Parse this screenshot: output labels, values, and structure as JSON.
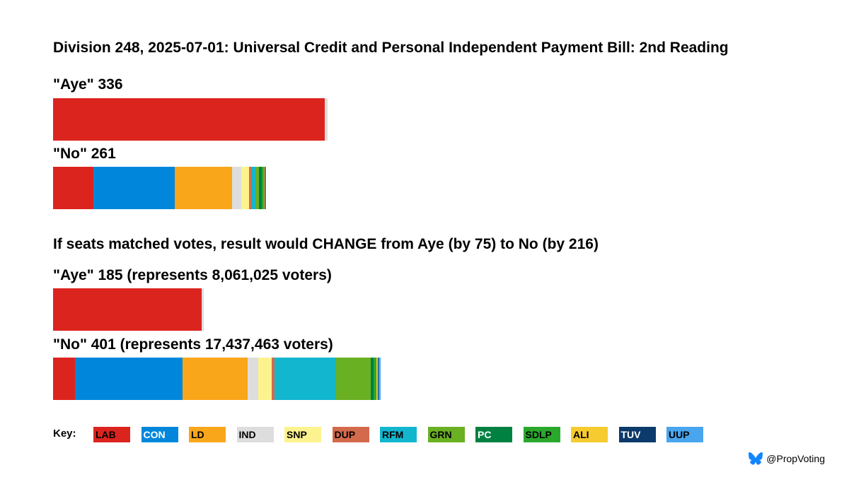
{
  "title": "Division 248, 2025-07-01: Universal Credit and Personal Independent Payment Bill: 2nd Reading",
  "subtitle": "If seats matched votes, result would CHANGE from Aye (by 75) to No (by 216)",
  "key_label": "Key:",
  "credit": "@PropVoting",
  "credit_icon": "butterfly-icon",
  "parties": [
    {
      "code": "LAB",
      "color": "#dc241f",
      "text": "#000000"
    },
    {
      "code": "CON",
      "color": "#0087dc",
      "text": "#ffffff"
    },
    {
      "code": "LD",
      "color": "#faa61a",
      "text": "#000000"
    },
    {
      "code": "IND",
      "color": "#dddddd",
      "text": "#000000"
    },
    {
      "code": "SNP",
      "color": "#fdf38e",
      "text": "#000000"
    },
    {
      "code": "DUP",
      "color": "#d46a4c",
      "text": "#000000"
    },
    {
      "code": "RFM",
      "color": "#12b6cf",
      "text": "#000000"
    },
    {
      "code": "GRN",
      "color": "#6ab023",
      "text": "#000000"
    },
    {
      "code": "PC",
      "color": "#008142",
      "text": "#ffffff"
    },
    {
      "code": "SDLP",
      "color": "#2aa82c",
      "text": "#000000"
    },
    {
      "code": "ALI",
      "color": "#f6cb2f",
      "text": "#000000"
    },
    {
      "code": "TUV",
      "color": "#0c3a6a",
      "text": "#ffffff"
    },
    {
      "code": "UUP",
      "color": "#48a5ee",
      "text": "#000000"
    }
  ],
  "chart_data": [
    {
      "type": "bar",
      "label": "\"Aye\" 336",
      "stacked": true,
      "segments": [
        {
          "party": "LAB",
          "value": 333
        },
        {
          "party": "IND",
          "value": 3
        }
      ]
    },
    {
      "type": "bar",
      "label": "\"No\" 261",
      "stacked": true,
      "segments": [
        {
          "party": "LAB",
          "value": 49
        },
        {
          "party": "CON",
          "value": 100
        },
        {
          "party": "LD",
          "value": 70
        },
        {
          "party": "IND",
          "value": 12
        },
        {
          "party": "SNP",
          "value": 9
        },
        {
          "party": "DUP",
          "value": 4
        },
        {
          "party": "RFM",
          "value": 4
        },
        {
          "party": "GRN",
          "value": 4
        },
        {
          "party": "PC",
          "value": 4
        },
        {
          "party": "SDLP",
          "value": 2
        },
        {
          "party": "ALI",
          "value": 1
        },
        {
          "party": "TUV",
          "value": 1
        },
        {
          "party": "UUP",
          "value": 1
        }
      ]
    },
    {
      "type": "bar",
      "label": "\"Aye\" 185 (represents 8,061,025 voters)",
      "stacked": true,
      "segments": [
        {
          "party": "LAB",
          "value": 182
        },
        {
          "party": "IND",
          "value": 3
        }
      ]
    },
    {
      "type": "bar",
      "label": "\"No\" 401 (represents 17,437,463 voters)",
      "stacked": true,
      "segments": [
        {
          "party": "LAB",
          "value": 27
        },
        {
          "party": "CON",
          "value": 132
        },
        {
          "party": "LD",
          "value": 79
        },
        {
          "party": "IND",
          "value": 13
        },
        {
          "party": "SNP",
          "value": 17
        },
        {
          "party": "DUP",
          "value": 3
        },
        {
          "party": "RFM",
          "value": 76
        },
        {
          "party": "GRN",
          "value": 42
        },
        {
          "party": "PC",
          "value": 4
        },
        {
          "party": "SDLP",
          "value": 3
        },
        {
          "party": "ALI",
          "value": 2
        },
        {
          "party": "TUV",
          "value": 1
        },
        {
          "party": "UUP",
          "value": 2
        }
      ]
    }
  ]
}
